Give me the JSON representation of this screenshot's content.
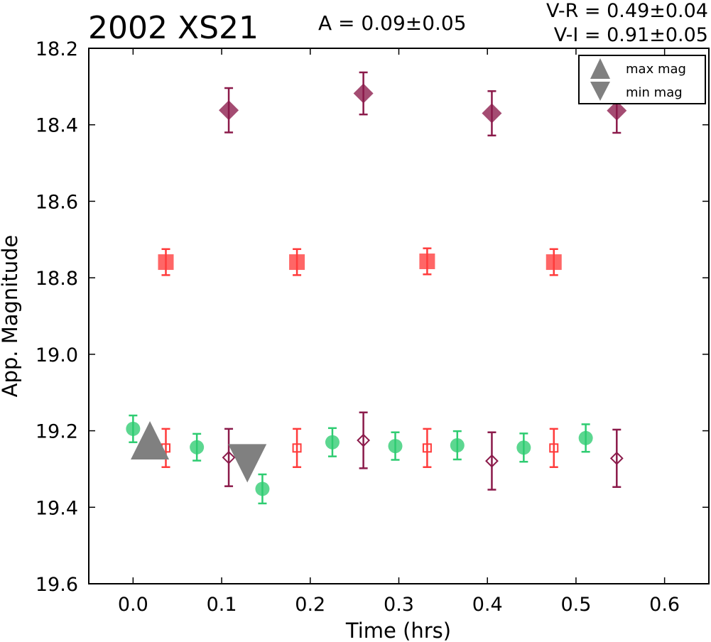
{
  "header": {
    "object_name": "2002 XS21",
    "amplitude_text": "A  = 0.09±0.05",
    "color_vr_text": "V-R = 0.49±0.04",
    "color_vi_text": "V-I  = 0.91±0.05"
  },
  "chart_data": {
    "type": "scatter",
    "xlabel": "Time (hrs)",
    "ylabel": "App. Magnitude",
    "xlim": [
      -0.05,
      0.65
    ],
    "ylim": [
      19.6,
      18.2
    ],
    "y_inverted": true,
    "x_ticks": [
      "0.0",
      "0.1",
      "0.2",
      "0.3",
      "0.4",
      "0.5",
      "0.6"
    ],
    "y_ticks": [
      "18.2",
      "18.4",
      "18.6",
      "18.8",
      "19.0",
      "19.2",
      "19.4",
      "19.6"
    ],
    "grid": false,
    "legend": {
      "placement": "top-right",
      "entries": [
        "max mag",
        "min mag"
      ]
    },
    "series": [
      {
        "marker": "circle-filled",
        "color": "#2ecc71",
        "points": [
          {
            "x": 0.0,
            "y": 19.195,
            "err": 0.035
          },
          {
            "x": 0.072,
            "y": 19.243,
            "err": 0.035
          },
          {
            "x": 0.146,
            "y": 19.352,
            "err": 0.038
          },
          {
            "x": 0.225,
            "y": 19.23,
            "err": 0.037
          },
          {
            "x": 0.296,
            "y": 19.24,
            "err": 0.036
          },
          {
            "x": 0.366,
            "y": 19.238,
            "err": 0.037
          },
          {
            "x": 0.441,
            "y": 19.244,
            "err": 0.037
          },
          {
            "x": 0.511,
            "y": 19.219,
            "err": 0.036
          }
        ]
      },
      {
        "marker": "square-filled",
        "color": "#ff3b3b",
        "points": [
          {
            "x": 0.037,
            "y": 18.759,
            "err": 0.034
          },
          {
            "x": 0.185,
            "y": 18.759,
            "err": 0.034
          },
          {
            "x": 0.332,
            "y": 18.757,
            "err": 0.034
          },
          {
            "x": 0.475,
            "y": 18.759,
            "err": 0.034
          }
        ]
      },
      {
        "marker": "square-open",
        "color": "#ff3b3b",
        "points": [
          {
            "x": 0.037,
            "y": 19.245,
            "err": 0.05
          },
          {
            "x": 0.185,
            "y": 19.245,
            "err": 0.05
          },
          {
            "x": 0.332,
            "y": 19.245,
            "err": 0.05
          },
          {
            "x": 0.475,
            "y": 19.245,
            "err": 0.05
          }
        ]
      },
      {
        "marker": "diamond-filled",
        "color": "#8b1a4a",
        "points": [
          {
            "x": 0.108,
            "y": 18.362,
            "err": 0.058
          },
          {
            "x": 0.26,
            "y": 18.318,
            "err": 0.055
          },
          {
            "x": 0.405,
            "y": 18.37,
            "err": 0.058
          },
          {
            "x": 0.546,
            "y": 18.363,
            "err": 0.058
          }
        ]
      },
      {
        "marker": "diamond-open",
        "color": "#8b1a4a",
        "points": [
          {
            "x": 0.108,
            "y": 19.27,
            "err": 0.075
          },
          {
            "x": 0.26,
            "y": 19.225,
            "err": 0.073
          },
          {
            "x": 0.405,
            "y": 19.279,
            "err": 0.075
          },
          {
            "x": 0.546,
            "y": 19.272,
            "err": 0.075
          }
        ]
      }
    ],
    "extrema": [
      {
        "type": "max",
        "x": 0.019,
        "y": 19.225
      },
      {
        "type": "min",
        "x": 0.129,
        "y": 19.285
      }
    ],
    "colors": {
      "extrema": "#808080",
      "green": "#2ecc71",
      "red": "#ff3b3b",
      "purple": "#8b1a4a"
    }
  }
}
